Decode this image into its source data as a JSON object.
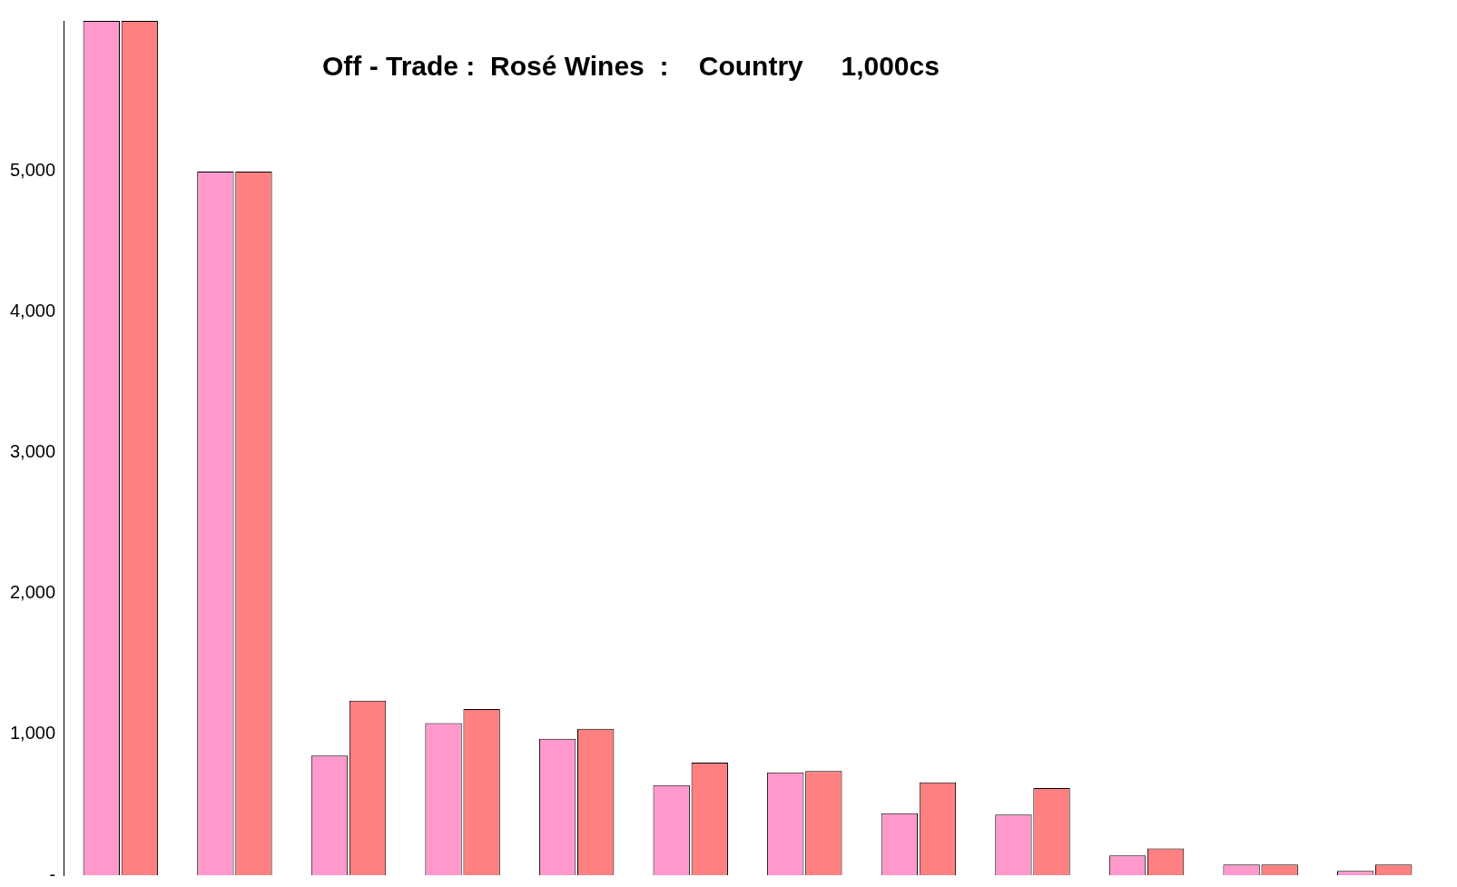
{
  "chart_data": {
    "type": "bar",
    "title": "Off - Trade :  Rosé Wines  :    Country     1,000cs",
    "categories": [
      null,
      null,
      null,
      null,
      null,
      null,
      null,
      null,
      null,
      null,
      null,
      null
    ],
    "series": [
      {
        "color": "#ff99cc",
        "values": [
          6070,
          5000,
          850,
          1080,
          970,
          640,
          730,
          440,
          430,
          140,
          75,
          30
        ]
      },
      {
        "color": "#ff8080",
        "values": [
          6070,
          5000,
          1240,
          1180,
          1040,
          800,
          740,
          660,
          620,
          190,
          75,
          75
        ]
      }
    ],
    "ylim": [
      0,
      6070
    ],
    "yticks": [
      {
        "value": 0,
        "label": "-"
      },
      {
        "value": 1000,
        "label": "1,000"
      },
      {
        "value": 2000,
        "label": "2,000"
      },
      {
        "value": 3000,
        "label": "3,000"
      },
      {
        "value": 4000,
        "label": "4,000"
      },
      {
        "value": 5000,
        "label": "5,000"
      }
    ],
    "tick_labels": "y",
    "grid": false,
    "legend": false
  }
}
